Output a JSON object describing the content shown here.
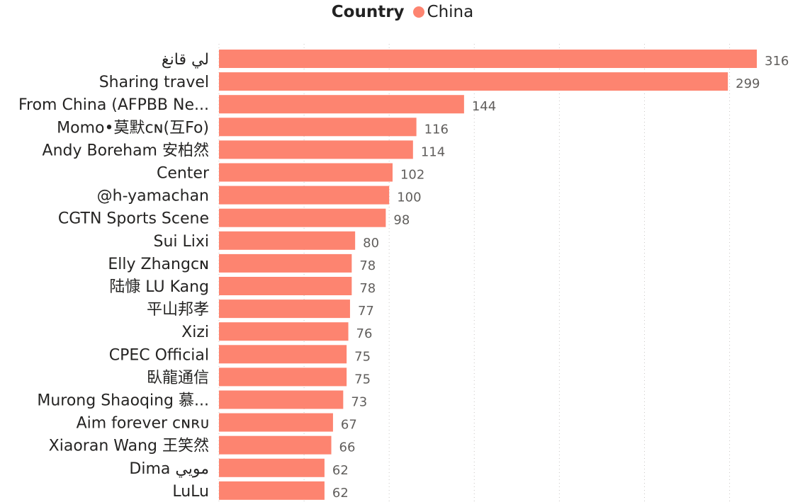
{
  "legend": {
    "title": "Country",
    "series": "China",
    "color": "#fd8470"
  },
  "chart_data": {
    "type": "bar",
    "orientation": "horizontal",
    "legend_title": "Country",
    "series": [
      {
        "name": "China",
        "color": "#fd8470",
        "values": [
          316,
          299,
          144,
          116,
          114,
          102,
          100,
          98,
          80,
          78,
          78,
          77,
          76,
          75,
          75,
          73,
          67,
          66,
          62,
          62
        ]
      }
    ],
    "categories": [
      "لي قانغ",
      "Sharing travel",
      "From China (AFPBB Ne...",
      "Momo•莫默ᴄɴ(互Fo)",
      "Andy Boreham 安柏然",
      "Center",
      "@h-yamachan",
      "CGTN Sports Scene",
      "Sui Lixi",
      "Elly Zhangᴄɴ",
      "陆慷 LU Kang",
      "平山邦孝",
      "Xizi",
      "CPEC Official",
      "臥龍通信",
      "Murong Shaoqing 慕...",
      "Aim forever ᴄɴʀᴜ",
      "Xiaoran Wang 王笑然",
      "Dima مويي",
      "LuLu"
    ],
    "xlim": [
      0,
      330
    ],
    "grid": true,
    "legend_position": "top-center",
    "data_labels": true
  }
}
